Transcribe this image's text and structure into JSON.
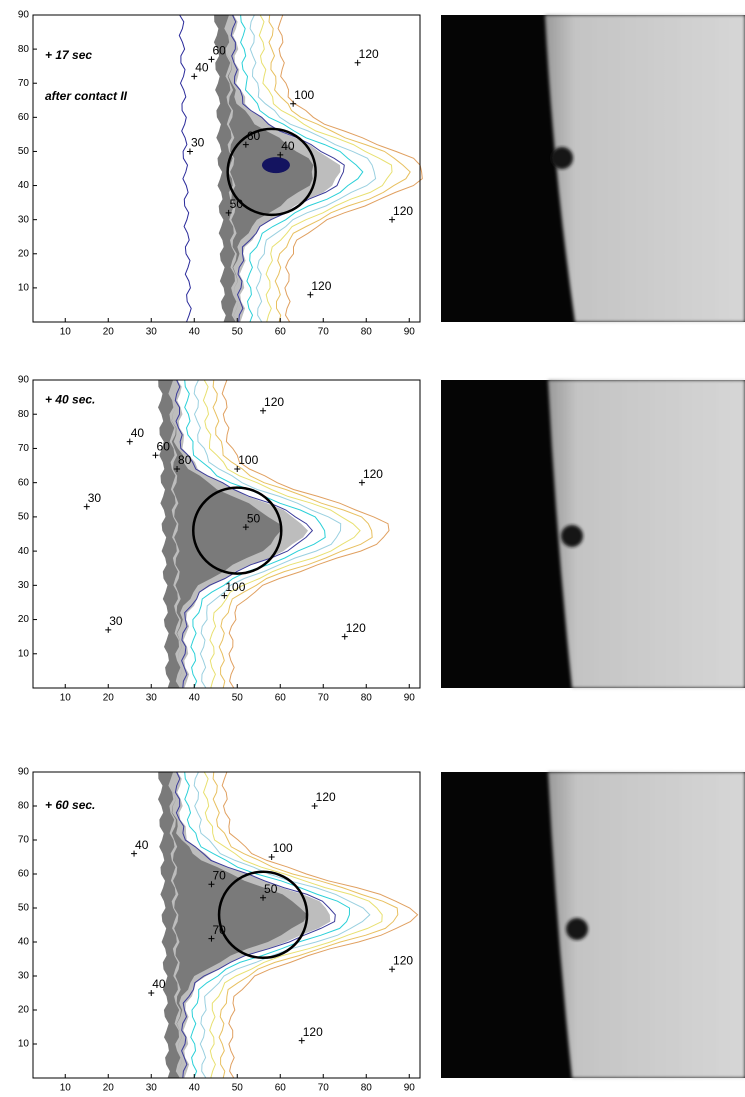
{
  "chart_data": [
    {
      "type": "contour",
      "annotation": [
        "+ 17 sec",
        "after contact II"
      ],
      "xlim": [
        2.5,
        92.5
      ],
      "ylim": [
        0,
        90
      ],
      "xticks": [
        10,
        20,
        30,
        40,
        50,
        60,
        70,
        80,
        90
      ],
      "yticks": [
        10,
        20,
        30,
        40,
        50,
        60,
        70,
        80,
        90
      ],
      "contour_labels": [
        60,
        40,
        120,
        100,
        60,
        40,
        30,
        50,
        120,
        120
      ]
    },
    {
      "type": "contour",
      "annotation": [
        "+ 40 sec."
      ],
      "xlim": [
        2.5,
        92.5
      ],
      "ylim": [
        0,
        90
      ],
      "xticks": [
        10,
        20,
        30,
        40,
        50,
        60,
        70,
        80,
        90
      ],
      "yticks": [
        10,
        20,
        30,
        40,
        50,
        60,
        70,
        80,
        90
      ],
      "contour_labels": [
        40,
        60,
        80,
        100,
        120,
        120,
        30,
        50,
        100,
        30,
        120
      ]
    },
    {
      "type": "contour",
      "annotation": [
        "+ 60 sec."
      ],
      "xlim": [
        2.5,
        92.5
      ],
      "ylim": [
        0,
        90
      ],
      "xticks": [
        10,
        20,
        30,
        40,
        50,
        60,
        70,
        80,
        90
      ],
      "yticks": [
        10,
        20,
        30,
        40,
        50,
        60,
        70,
        80,
        90
      ],
      "contour_labels": [
        120,
        40,
        100,
        70,
        50,
        70,
        40,
        120,
        120
      ]
    }
  ]
}
